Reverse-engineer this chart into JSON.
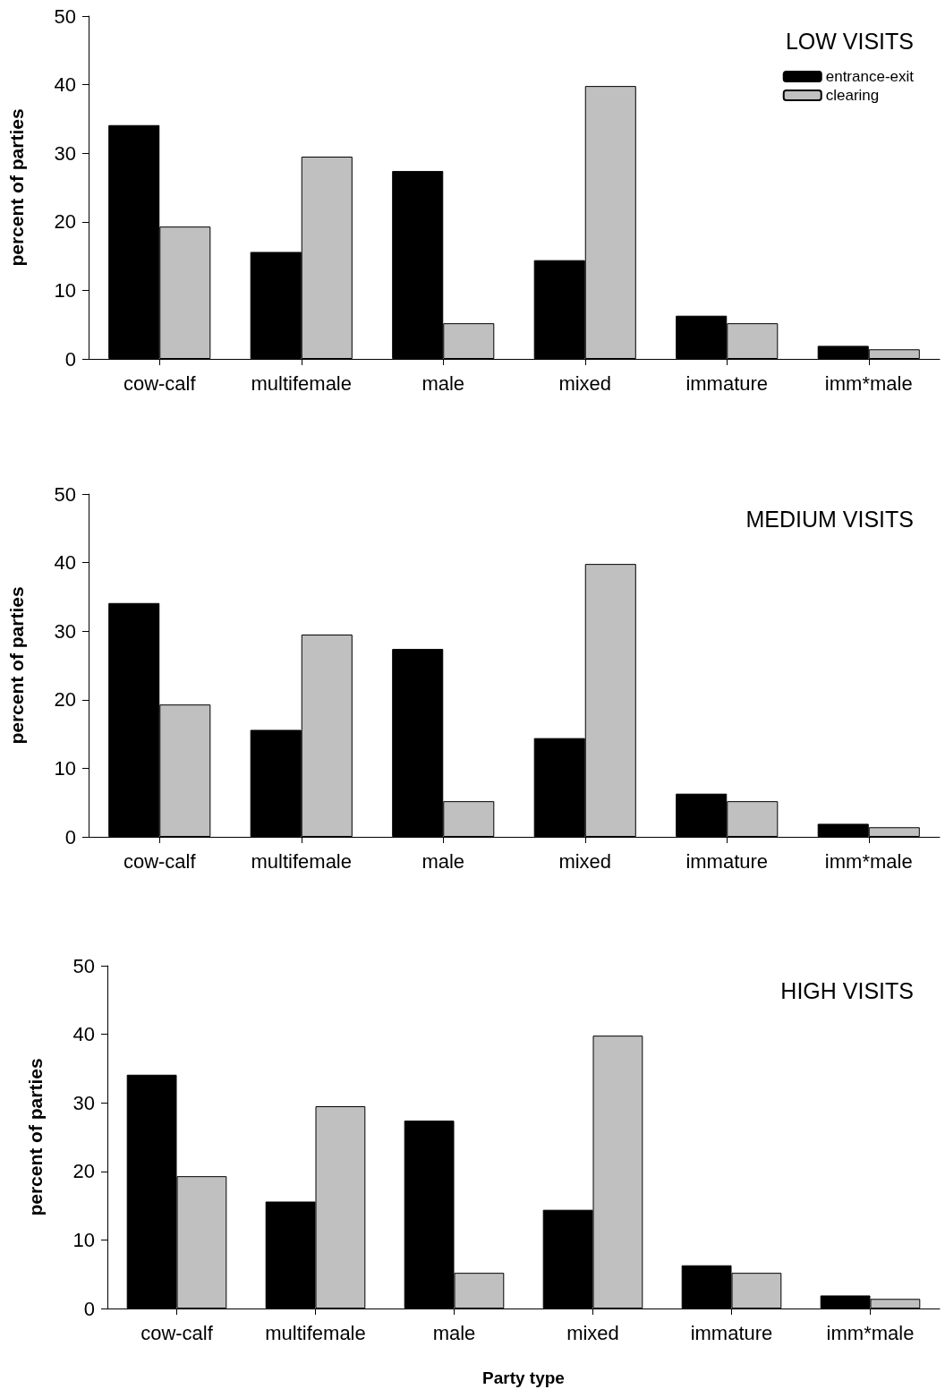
{
  "chart_data": [
    {
      "type": "bar",
      "title": "LOW VISITS",
      "ylabel": "percent of parties",
      "categories": [
        "cow-calf",
        "multifemale",
        "male",
        "mixed",
        "immature",
        "imm*male"
      ],
      "series": [
        {
          "name": "entrance-exit",
          "color": "#000000",
          "values": [
            34.1,
            15.6,
            27.4,
            14.4,
            6.3,
            1.9
          ]
        },
        {
          "name": "clearing",
          "color": "#c0c0c0",
          "values": [
            19.3,
            29.5,
            5.2,
            39.8,
            5.2,
            1.4
          ]
        }
      ],
      "ylim": [
        0,
        50
      ],
      "yticks": [
        0,
        10,
        20,
        30,
        40,
        50
      ],
      "grid": false,
      "legend": "top right"
    },
    {
      "type": "bar",
      "title": "MEDIUM VISITS",
      "ylabel": "percent of parties",
      "categories": [
        "cow-calf",
        "multifemale",
        "male",
        "mixed",
        "immature",
        "imm*male"
      ],
      "series": [
        {
          "color": "#000000",
          "values": [
            34.1,
            15.6,
            27.4,
            14.4,
            6.3,
            1.9
          ]
        },
        {
          "color": "#c0c0c0",
          "values": [
            19.3,
            29.5,
            5.2,
            39.8,
            5.2,
            1.4
          ]
        }
      ],
      "ylim": [
        0,
        50
      ],
      "yticks": [
        0,
        10,
        20,
        30,
        40,
        50
      ],
      "grid": false
    },
    {
      "type": "bar",
      "title": "HIGH VISITS",
      "ylabel": "percent of parties",
      "xlabel": "Party type",
      "categories": [
        "cow-calf",
        "multifemale",
        "male",
        "mixed",
        "immature",
        "imm*male"
      ],
      "series": [
        {
          "color": "#000000",
          "values": [
            34.1,
            15.6,
            27.4,
            14.4,
            6.3,
            1.9
          ]
        },
        {
          "color": "#c0c0c0",
          "values": [
            19.3,
            29.5,
            5.2,
            39.8,
            5.2,
            1.4
          ]
        }
      ],
      "ylim": [
        0,
        50
      ],
      "yticks": [
        0,
        10,
        20,
        30,
        40,
        50
      ],
      "grid": false
    }
  ]
}
